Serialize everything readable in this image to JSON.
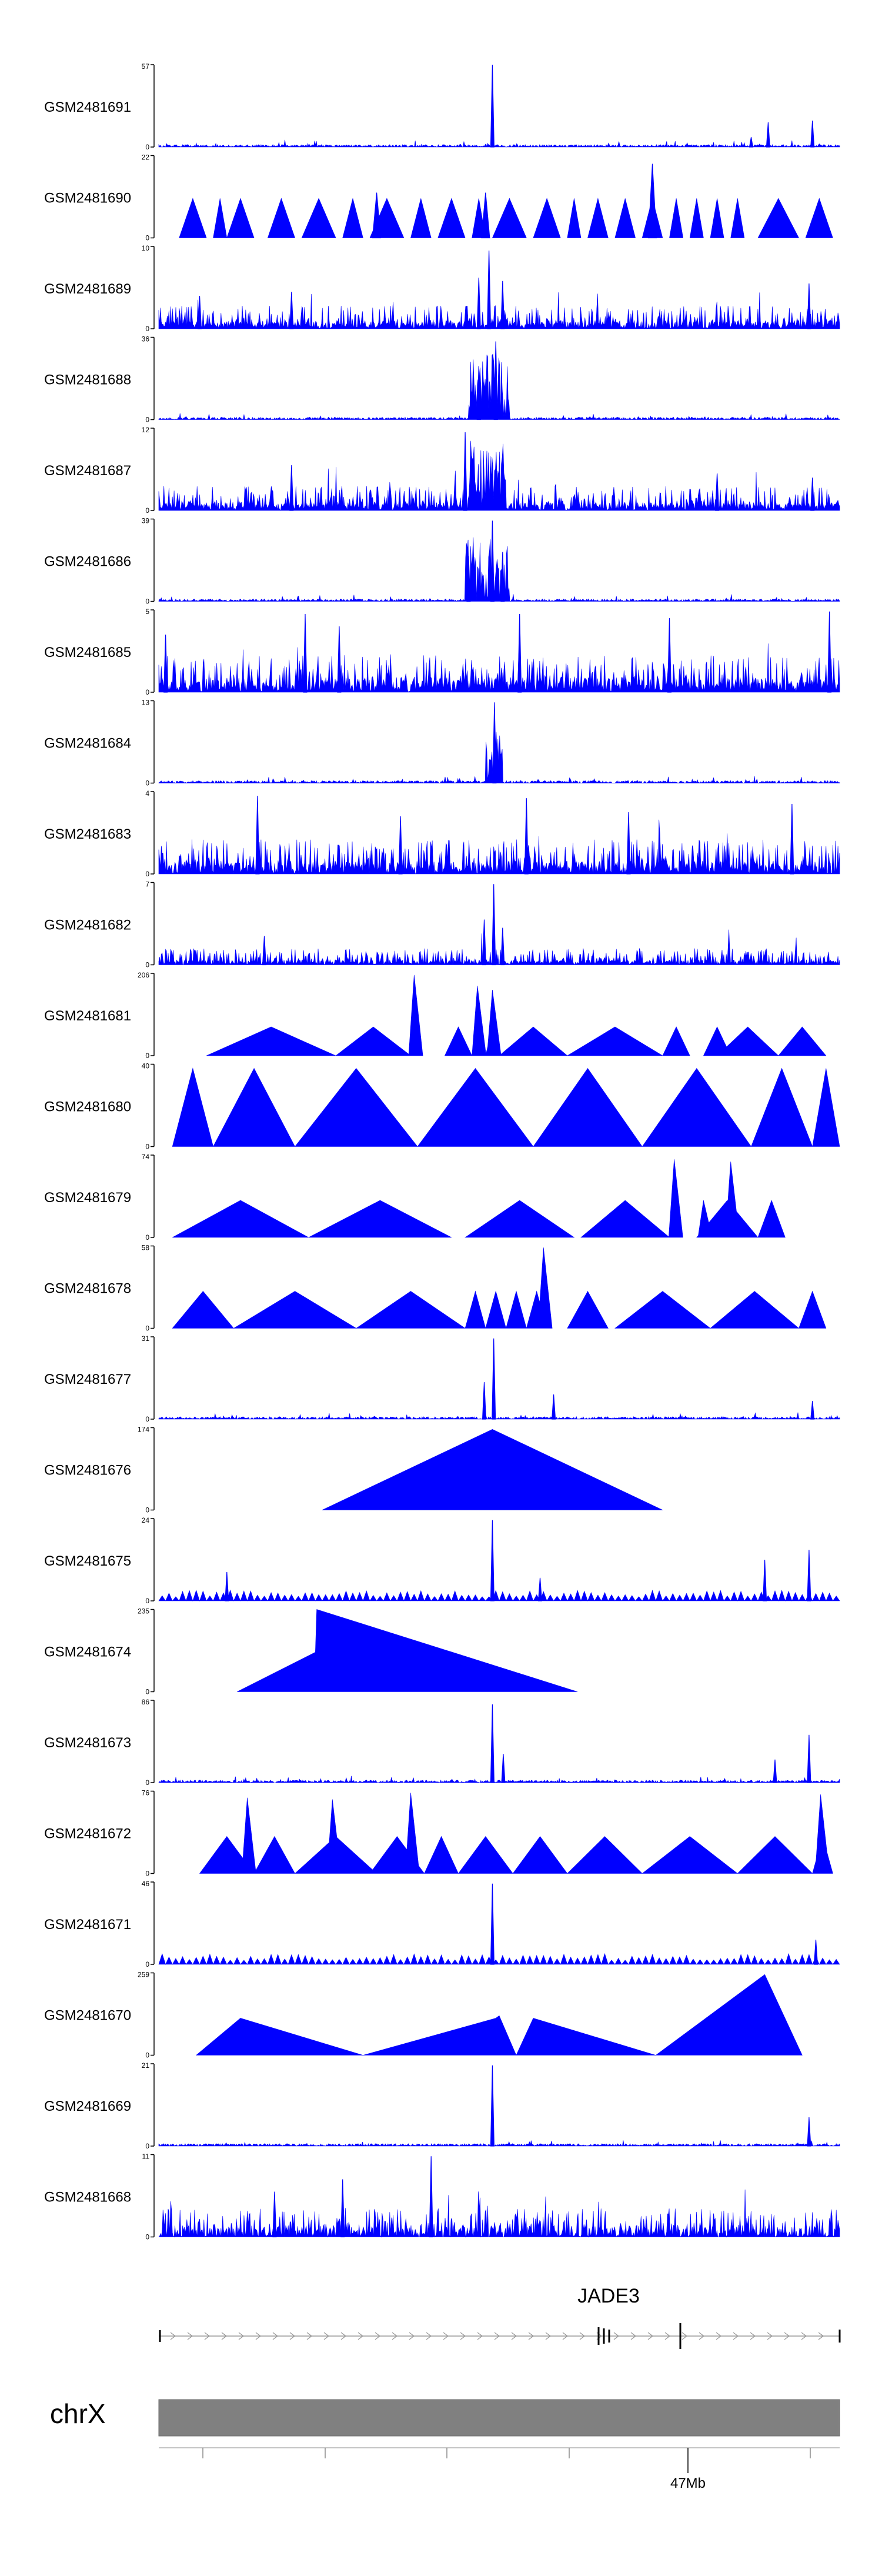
{
  "chart_data": {
    "type": "area",
    "title": "",
    "xlabel": "",
    "ylabel": "",
    "colors": {
      "track_fill": "#0000ff",
      "axis": "#000000",
      "ideogram": "#808080",
      "gene": "#000000"
    },
    "tracks": [
      {
        "name": "GSM2481691",
        "ymax": "57",
        "style": "sparse",
        "seed": 11,
        "peaks": [
          [
            0.49,
            1.0
          ],
          [
            0.895,
            0.3
          ],
          [
            0.96,
            0.32
          ],
          [
            0.87,
            0.12
          ]
        ]
      },
      {
        "name": "GSM2481690",
        "ymax": "22",
        "style": "tri",
        "seed": 12,
        "peaks": [
          [
            0.725,
            0.9
          ],
          [
            0.48,
            0.55
          ],
          [
            0.32,
            0.55
          ]
        ],
        "segments": [
          [
            0.03,
            0.07
          ],
          [
            0.08,
            0.1
          ],
          [
            0.1,
            0.14
          ],
          [
            0.16,
            0.2
          ],
          [
            0.21,
            0.26
          ],
          [
            0.27,
            0.3
          ],
          [
            0.31,
            0.36
          ],
          [
            0.37,
            0.4
          ],
          [
            0.41,
            0.45
          ],
          [
            0.46,
            0.48
          ],
          [
            0.49,
            0.54
          ],
          [
            0.55,
            0.59
          ],
          [
            0.6,
            0.62
          ],
          [
            0.63,
            0.66
          ],
          [
            0.67,
            0.7
          ],
          [
            0.71,
            0.74
          ],
          [
            0.75,
            0.77
          ],
          [
            0.78,
            0.8
          ],
          [
            0.81,
            0.83
          ],
          [
            0.84,
            0.86
          ],
          [
            0.88,
            0.94
          ],
          [
            0.95,
            0.99
          ]
        ],
        "seg_h": 0.48
      },
      {
        "name": "GSM2481689",
        "ymax": "10",
        "style": "dense",
        "seed": 13,
        "base": 0.1,
        "noise": 0.28,
        "peaks": [
          [
            0.485,
            0.95
          ],
          [
            0.47,
            0.62
          ],
          [
            0.505,
            0.58
          ],
          [
            0.955,
            0.55
          ],
          [
            0.195,
            0.45
          ],
          [
            0.06,
            0.4
          ]
        ]
      },
      {
        "name": "GSM2481688",
        "ymax": "36",
        "style": "sparse",
        "seed": 14,
        "cluster": [
          0.455,
          0.515,
          0.8
        ],
        "peaks": [
          [
            0.495,
            0.95
          ],
          [
            0.47,
            0.65
          ]
        ]
      },
      {
        "name": "GSM2481687",
        "ymax": "12",
        "style": "dense",
        "seed": 15,
        "base": 0.1,
        "noise": 0.3,
        "cluster": [
          0.455,
          0.51,
          0.85
        ],
        "peaks": [
          [
            0.45,
            0.95
          ],
          [
            0.195,
            0.55
          ],
          [
            0.82,
            0.45
          ],
          [
            0.96,
            0.4
          ]
        ]
      },
      {
        "name": "GSM2481686",
        "ymax": "39",
        "style": "sparse",
        "seed": 16,
        "cluster": [
          0.45,
          0.515,
          0.78
        ],
        "peaks": [
          [
            0.49,
            0.98
          ],
          [
            0.455,
            0.55
          ],
          [
            0.505,
            0.6
          ]
        ]
      },
      {
        "name": "GSM2481685",
        "ymax": "5",
        "style": "dense",
        "seed": 17,
        "base": 0.18,
        "noise": 0.45,
        "peaks": [
          [
            0.215,
            0.95
          ],
          [
            0.265,
            0.8
          ],
          [
            0.53,
            0.95
          ],
          [
            0.75,
            0.9
          ],
          [
            0.985,
            0.98
          ],
          [
            0.01,
            0.7
          ]
        ]
      },
      {
        "name": "GSM2481684",
        "ymax": "13",
        "style": "sparse",
        "seed": 18,
        "cluster": [
          0.48,
          0.505,
          0.65
        ],
        "peaks": [
          [
            0.493,
            0.98
          ]
        ]
      },
      {
        "name": "GSM2481683",
        "ymax": "4",
        "style": "dense",
        "seed": 19,
        "base": 0.16,
        "noise": 0.42,
        "peaks": [
          [
            0.145,
            0.95
          ],
          [
            0.54,
            0.92
          ],
          [
            0.93,
            0.85
          ],
          [
            0.355,
            0.7
          ],
          [
            0.69,
            0.75
          ]
        ]
      },
      {
        "name": "GSM2481682",
        "ymax": "7",
        "style": "dense",
        "seed": 20,
        "base": 0.06,
        "noise": 0.2,
        "peaks": [
          [
            0.492,
            0.98
          ],
          [
            0.478,
            0.55
          ],
          [
            0.505,
            0.45
          ],
          [
            0.155,
            0.35
          ]
        ]
      },
      {
        "name": "GSM2481681",
        "ymax": "206",
        "style": "tri",
        "seed": 21,
        "peaks": [],
        "segments": [
          [
            0.07,
            0.26
          ],
          [
            0.26,
            0.37
          ],
          [
            0.42,
            0.46
          ],
          [
            0.48,
            0.5
          ],
          [
            0.5,
            0.6
          ],
          [
            0.6,
            0.74
          ],
          [
            0.74,
            0.78
          ],
          [
            0.8,
            0.84
          ],
          [
            0.82,
            0.91
          ],
          [
            0.91,
            0.98
          ]
        ],
        "seg_h": 0.35,
        "spikes": [
          [
            0.375,
            0.98
          ],
          [
            0.468,
            0.85
          ],
          [
            0.49,
            0.8
          ]
        ]
      },
      {
        "name": "GSM2481680",
        "ymax": "40",
        "style": "tri",
        "seed": 22,
        "peaks": [],
        "segments": [
          [
            0.02,
            0.08
          ],
          [
            0.08,
            0.2
          ],
          [
            0.2,
            0.38
          ],
          [
            0.38,
            0.55
          ],
          [
            0.55,
            0.71
          ],
          [
            0.71,
            0.87
          ],
          [
            0.87,
            0.96
          ],
          [
            0.96,
            1.0
          ]
        ],
        "seg_h": 0.95
      },
      {
        "name": "GSM2481679",
        "ymax": "74",
        "style": "tri",
        "seed": 23,
        "peaks": [],
        "segments": [
          [
            0.02,
            0.22
          ],
          [
            0.22,
            0.43
          ],
          [
            0.45,
            0.61
          ],
          [
            0.62,
            0.75
          ],
          [
            0.79,
            0.88
          ],
          [
            0.88,
            0.92
          ]
        ],
        "seg_h": 0.45,
        "spikes": [
          [
            0.757,
            0.95
          ],
          [
            0.84,
            0.92
          ],
          [
            0.8,
            0.45
          ]
        ]
      },
      {
        "name": "GSM2481678",
        "ymax": "58",
        "style": "tri",
        "seed": 24,
        "peaks": [],
        "segments": [
          [
            0.02,
            0.11
          ],
          [
            0.11,
            0.29
          ],
          [
            0.29,
            0.45
          ],
          [
            0.45,
            0.48
          ],
          [
            0.48,
            0.51
          ],
          [
            0.51,
            0.54
          ],
          [
            0.54,
            0.57
          ],
          [
            0.6,
            0.66
          ],
          [
            0.67,
            0.81
          ],
          [
            0.81,
            0.94
          ],
          [
            0.94,
            0.98
          ]
        ],
        "seg_h": 0.45,
        "spikes": [
          [
            0.565,
            0.98
          ]
        ]
      },
      {
        "name": "GSM2481677",
        "ymax": "31",
        "style": "sparse",
        "seed": 25,
        "peaks": [
          [
            0.492,
            0.98
          ],
          [
            0.478,
            0.45
          ],
          [
            0.58,
            0.3
          ],
          [
            0.96,
            0.22
          ]
        ]
      },
      {
        "name": "GSM2481676",
        "ymax": "174",
        "style": "tri",
        "seed": 26,
        "peaks": [],
        "segments": [
          [
            0.24,
            0.74
          ]
        ],
        "seg_h": 0.98
      },
      {
        "name": "GSM2481675",
        "ymax": "24",
        "style": "tri_dense",
        "seed": 27,
        "peaks": [
          [
            0.49,
            0.98
          ],
          [
            0.955,
            0.62
          ],
          [
            0.89,
            0.5
          ],
          [
            0.1,
            0.35
          ],
          [
            0.56,
            0.28
          ]
        ]
      },
      {
        "name": "GSM2481674",
        "ymax": "235",
        "style": "tri",
        "seed": 28,
        "peaks": [],
        "segments": [
          [
            0.12,
            0.36
          ],
          [
            0.23,
            0.62
          ]
        ],
        "seg_h": 1.0,
        "custom": "ramp"
      },
      {
        "name": "GSM2481673",
        "ymax": "86",
        "style": "sparse",
        "seed": 29,
        "peaks": [
          [
            0.49,
            0.95
          ],
          [
            0.955,
            0.58
          ],
          [
            0.905,
            0.28
          ],
          [
            0.506,
            0.35
          ]
        ]
      },
      {
        "name": "GSM2481672",
        "ymax": "76",
        "style": "tri",
        "seed": 30,
        "peaks": [],
        "segments": [
          [
            0.06,
            0.14
          ],
          [
            0.14,
            0.2
          ],
          [
            0.2,
            0.32
          ],
          [
            0.31,
            0.39
          ],
          [
            0.39,
            0.44
          ],
          [
            0.44,
            0.52
          ],
          [
            0.52,
            0.6
          ],
          [
            0.6,
            0.71
          ],
          [
            0.71,
            0.85
          ],
          [
            0.85,
            0.96
          ],
          [
            0.96,
            0.99
          ]
        ],
        "seg_h": 0.45,
        "spikes": [
          [
            0.13,
            0.92
          ],
          [
            0.255,
            0.9
          ],
          [
            0.37,
            0.98
          ],
          [
            0.972,
            0.96
          ]
        ]
      },
      {
        "name": "GSM2481671",
        "ymax": "46",
        "style": "tri_dense",
        "seed": 31,
        "peaks": [
          [
            0.49,
            0.98
          ],
          [
            0.965,
            0.3
          ]
        ]
      },
      {
        "name": "GSM2481670",
        "ymax": "259",
        "style": "tri",
        "seed": 32,
        "peaks": [],
        "segments": [
          [
            0.06,
            0.31
          ],
          [
            0.31,
            0.5
          ],
          [
            0.5,
            0.53
          ],
          [
            0.53,
            0.73
          ],
          [
            0.73,
            0.94
          ]
        ],
        "seg_h": 0.5,
        "custom": "r1670"
      },
      {
        "name": "GSM2481669",
        "ymax": "21",
        "style": "sparse",
        "seed": 33,
        "peaks": [
          [
            0.49,
            0.98
          ],
          [
            0.955,
            0.35
          ]
        ]
      },
      {
        "name": "GSM2481668",
        "ymax": "11",
        "style": "dense_tri",
        "seed": 34,
        "base": 0.14,
        "noise": 0.35,
        "peaks": [
          [
            0.4,
            0.98
          ],
          [
            0.27,
            0.7
          ],
          [
            0.17,
            0.55
          ]
        ]
      }
    ],
    "gene": {
      "name": "JADE3"
    },
    "chromosome": {
      "name": "chrX",
      "tick_label": "47Mb"
    }
  }
}
